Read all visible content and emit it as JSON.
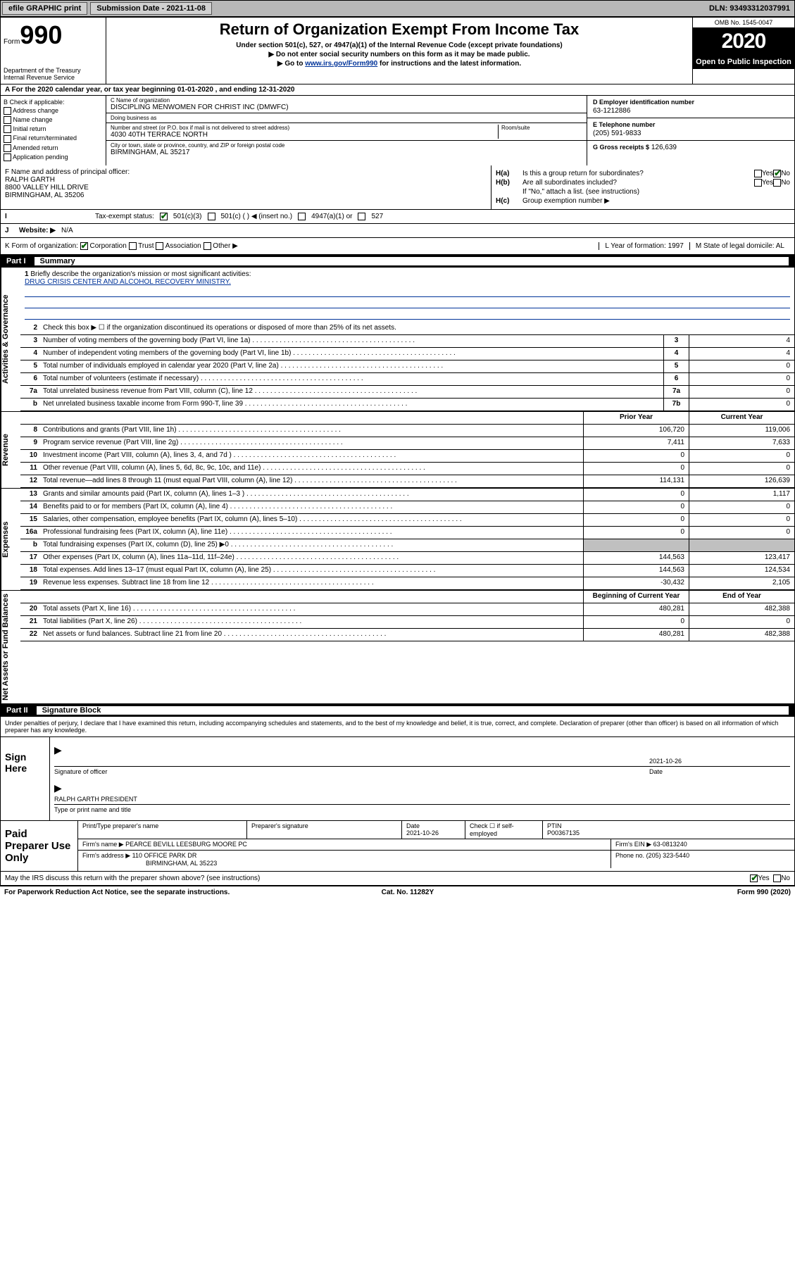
{
  "topbar": {
    "efile": "efile GRAPHIC print",
    "submission_label": "Submission Date - 2021-11-08",
    "dln": "DLN: 93493312037991"
  },
  "header": {
    "form_prefix": "Form",
    "form_num": "990",
    "dept": "Department of the Treasury\nInternal Revenue Service",
    "title": "Return of Organization Exempt From Income Tax",
    "sub1": "Under section 501(c), 527, or 4947(a)(1) of the Internal Revenue Code (except private foundations)",
    "sub2": "▶ Do not enter social security numbers on this form as it may be made public.",
    "sub3_prefix": "▶ Go to ",
    "sub3_link": "www.irs.gov/Form990",
    "sub3_suffix": " for instructions and the latest information.",
    "omb": "OMB No. 1545-0047",
    "year": "2020",
    "open": "Open to Public Inspection"
  },
  "a": "A For the 2020 calendar year, or tax year beginning 01-01-2020    , and ending 12-31-2020",
  "b": {
    "label": "B Check if applicable:",
    "opts": [
      "Address change",
      "Name change",
      "Initial return",
      "Final return/terminated",
      "Amended return",
      "Application pending"
    ]
  },
  "c": {
    "name_lbl": "C Name of organization",
    "name": "DISCIPLING MENWOMEN FOR CHRIST INC (DMWFC)",
    "dba_lbl": "Doing business as",
    "dba": "",
    "addr_lbl": "Number and street (or P.O. box if mail is not delivered to street address)",
    "room_lbl": "Room/suite",
    "addr": "4030 40TH TERRACE NORTH",
    "city_lbl": "City or town, state or province, country, and ZIP or foreign postal code",
    "city": "BIRMINGHAM, AL  35217"
  },
  "d": {
    "lbl": "D Employer identification number",
    "val": "63-1212886"
  },
  "e": {
    "lbl": "E Telephone number",
    "val": "(205) 591-9833"
  },
  "g": {
    "lbl": "G Gross receipts $",
    "val": "126,639"
  },
  "f": {
    "lbl": "F Name and address of principal officer:",
    "name": "RALPH GARTH",
    "addr1": "8800 VALLEY HILL DRIVE",
    "addr2": "BIRMINGHAM, AL  35206"
  },
  "h": {
    "a_lbl": "Is this a group return for subordinates?",
    "a_yes": "Yes",
    "a_no": "No",
    "b_lbl": "Are all subordinates included?",
    "note": "If \"No,\" attach a list. (see instructions)",
    "c_lbl": "Group exemption number ▶"
  },
  "i": {
    "lbl": "Tax-exempt status:",
    "opts": [
      "501(c)(3)",
      "501(c) (  ) ◀ (insert no.)",
      "4947(a)(1) or",
      "527"
    ]
  },
  "j": {
    "lbl": "Website: ▶",
    "val": "N/A"
  },
  "k": {
    "lbl": "K Form of organization:",
    "opts": [
      "Corporation",
      "Trust",
      "Association",
      "Other ▶"
    ]
  },
  "l": {
    "lbl": "L Year of formation:",
    "val": "1997"
  },
  "m": {
    "lbl": "M State of legal domicile:",
    "val": "AL"
  },
  "part1": {
    "num": "Part I",
    "title": "Summary"
  },
  "summary": {
    "q1_lbl": "Briefly describe the organization's mission or most significant activities:",
    "q1_val": "DRUG CRISIS CENTER AND ALCOHOL RECOVERY MINISTRY.",
    "q2": "Check this box ▶ ☐  if the organization discontinued its operations or disposed of more than 25% of its net assets.",
    "rows_ag": [
      {
        "n": "3",
        "t": "Number of voting members of the governing body (Part VI, line 1a)",
        "nc": "3",
        "v": "4"
      },
      {
        "n": "4",
        "t": "Number of independent voting members of the governing body (Part VI, line 1b)",
        "nc": "4",
        "v": "4"
      },
      {
        "n": "5",
        "t": "Total number of individuals employed in calendar year 2020 (Part V, line 2a)",
        "nc": "5",
        "v": "0"
      },
      {
        "n": "6",
        "t": "Total number of volunteers (estimate if necessary)",
        "nc": "6",
        "v": "0"
      },
      {
        "n": "7a",
        "t": "Total unrelated business revenue from Part VIII, column (C), line 12",
        "nc": "7a",
        "v": "0"
      },
      {
        "n": "b",
        "t": "Net unrelated business taxable income from Form 990-T, line 39",
        "nc": "7b",
        "v": "0"
      }
    ],
    "col_prior": "Prior Year",
    "col_current": "Current Year",
    "rows_rev": [
      {
        "n": "8",
        "t": "Contributions and grants (Part VIII, line 1h)",
        "p": "106,720",
        "c": "119,006"
      },
      {
        "n": "9",
        "t": "Program service revenue (Part VIII, line 2g)",
        "p": "7,411",
        "c": "7,633"
      },
      {
        "n": "10",
        "t": "Investment income (Part VIII, column (A), lines 3, 4, and 7d )",
        "p": "0",
        "c": "0"
      },
      {
        "n": "11",
        "t": "Other revenue (Part VIII, column (A), lines 5, 6d, 8c, 9c, 10c, and 11e)",
        "p": "0",
        "c": "0"
      },
      {
        "n": "12",
        "t": "Total revenue—add lines 8 through 11 (must equal Part VIII, column (A), line 12)",
        "p": "114,131",
        "c": "126,639"
      }
    ],
    "rows_exp": [
      {
        "n": "13",
        "t": "Grants and similar amounts paid (Part IX, column (A), lines 1–3 )",
        "p": "0",
        "c": "1,117"
      },
      {
        "n": "14",
        "t": "Benefits paid to or for members (Part IX, column (A), line 4)",
        "p": "0",
        "c": "0"
      },
      {
        "n": "15",
        "t": "Salaries, other compensation, employee benefits (Part IX, column (A), lines 5–10)",
        "p": "0",
        "c": "0"
      },
      {
        "n": "16a",
        "t": "Professional fundraising fees (Part IX, column (A), line 11e)",
        "p": "0",
        "c": "0"
      },
      {
        "n": "b",
        "t": "Total fundraising expenses (Part IX, column (D), line 25) ▶0",
        "shade": true
      },
      {
        "n": "17",
        "t": "Other expenses (Part IX, column (A), lines 11a–11d, 11f–24e)",
        "p": "144,563",
        "c": "123,417"
      },
      {
        "n": "18",
        "t": "Total expenses. Add lines 13–17 (must equal Part IX, column (A), line 25)",
        "p": "144,563",
        "c": "124,534"
      },
      {
        "n": "19",
        "t": "Revenue less expenses. Subtract line 18 from line 12",
        "p": "-30,432",
        "c": "2,105"
      }
    ],
    "col_begin": "Beginning of Current Year",
    "col_end": "End of Year",
    "rows_na": [
      {
        "n": "20",
        "t": "Total assets (Part X, line 16)",
        "p": "480,281",
        "c": "482,388"
      },
      {
        "n": "21",
        "t": "Total liabilities (Part X, line 26)",
        "p": "0",
        "c": "0"
      },
      {
        "n": "22",
        "t": "Net assets or fund balances. Subtract line 21 from line 20",
        "p": "480,281",
        "c": "482,388"
      }
    ],
    "vtab_ag": "Activities & Governance",
    "vtab_rev": "Revenue",
    "vtab_exp": "Expenses",
    "vtab_na": "Net Assets or Fund Balances"
  },
  "part2": {
    "num": "Part II",
    "title": "Signature Block"
  },
  "penalty": "Under penalties of perjury, I declare that I have examined this return, including accompanying schedules and statements, and to the best of my knowledge and belief, it is true, correct, and complete. Declaration of preparer (other than officer) is based on all information of which preparer has any knowledge.",
  "sign": {
    "left": "Sign Here",
    "sig_lbl": "Signature of officer",
    "date": "2021-10-26",
    "date_lbl": "Date",
    "name": "RALPH GARTH  PRESIDENT",
    "name_lbl": "Type or print name and title"
  },
  "prep": {
    "left": "Paid Preparer Use Only",
    "r1": {
      "c1_lbl": "Print/Type preparer's name",
      "c2_lbl": "Preparer's signature",
      "c3_lbl": "Date",
      "c3_val": "2021-10-26",
      "c4_lbl": "Check ☐ if self-employed",
      "c5_lbl": "PTIN",
      "c5_val": "P00367135"
    },
    "r2": {
      "c1_lbl": "Firm's name    ▶",
      "c1_val": "PEARCE BEVILL LEESBURG MOORE PC",
      "c2_lbl": "Firm's EIN ▶",
      "c2_val": "63-0813240"
    },
    "r3": {
      "c1_lbl": "Firm's address ▶",
      "c1_val": "110 OFFICE PARK DR",
      "c1_val2": "BIRMINGHAM, AL  35223",
      "c2_lbl": "Phone no.",
      "c2_val": "(205) 323-5440"
    }
  },
  "discuss": {
    "t": "May the IRS discuss this return with the preparer shown above? (see instructions)",
    "yes": "Yes",
    "no": "No"
  },
  "footer": {
    "l": "For Paperwork Reduction Act Notice, see the separate instructions.",
    "m": "Cat. No. 11282Y",
    "r": "Form 990 (2020)"
  }
}
